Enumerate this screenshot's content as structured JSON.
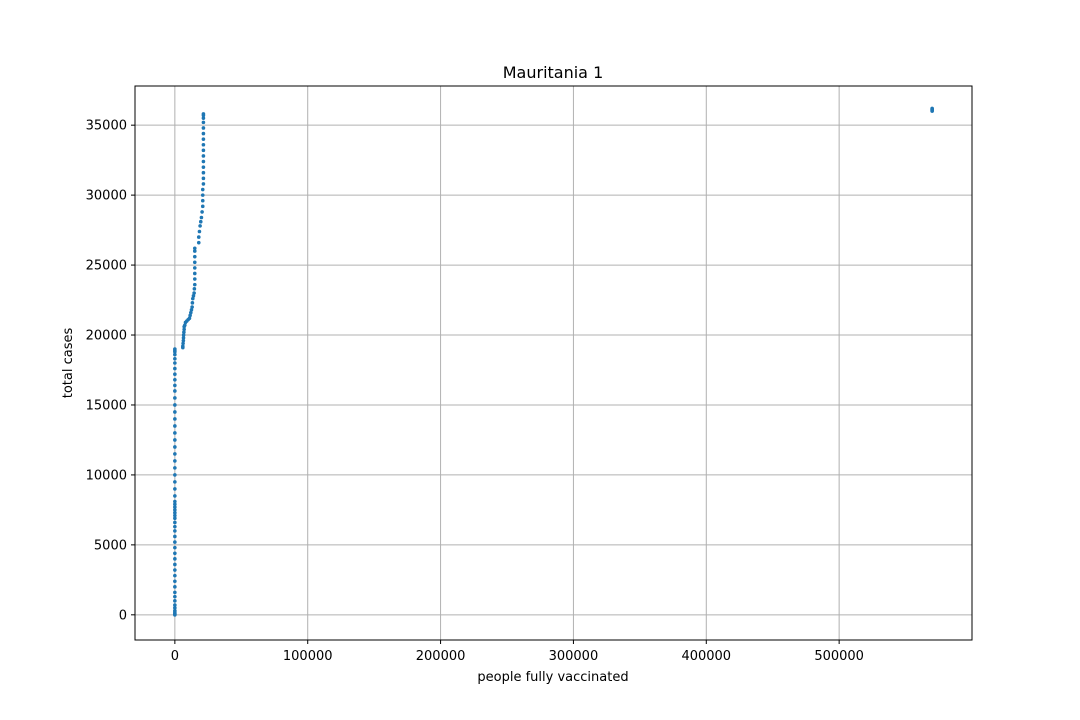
{
  "chart_data": {
    "type": "scatter",
    "title": "Mauritania 1",
    "xlabel": "people fully vaccinated",
    "ylabel": "total cases",
    "xlim": [
      -30000,
      600000
    ],
    "ylim": [
      -1800,
      37800
    ],
    "xticks": [
      0,
      100000,
      200000,
      300000,
      400000,
      500000
    ],
    "xtick_labels": [
      "0",
      "100000",
      "200000",
      "300000",
      "400000",
      "500000"
    ],
    "yticks": [
      0,
      5000,
      10000,
      15000,
      20000,
      25000,
      30000,
      35000
    ],
    "ytick_labels": [
      "0",
      "5000",
      "10000",
      "15000",
      "20000",
      "25000",
      "30000",
      "35000"
    ],
    "grid": true,
    "point_color": "#1f77b4",
    "series": [
      {
        "points": [
          [
            0,
            0
          ],
          [
            0,
            50
          ],
          [
            0,
            100
          ],
          [
            0,
            200
          ],
          [
            0,
            300
          ],
          [
            0,
            500
          ],
          [
            0,
            700
          ],
          [
            0,
            1000
          ],
          [
            0,
            1300
          ],
          [
            0,
            1600
          ],
          [
            0,
            2000
          ],
          [
            0,
            2400
          ],
          [
            0,
            2800
          ],
          [
            0,
            3200
          ],
          [
            0,
            3600
          ],
          [
            0,
            4000
          ],
          [
            0,
            4400
          ],
          [
            0,
            4800
          ],
          [
            0,
            5200
          ],
          [
            0,
            5600
          ],
          [
            0,
            6000
          ],
          [
            0,
            6300
          ],
          [
            0,
            6600
          ],
          [
            0,
            6900
          ],
          [
            0,
            7100
          ],
          [
            0,
            7300
          ],
          [
            0,
            7500
          ],
          [
            0,
            7700
          ],
          [
            0,
            7900
          ],
          [
            0,
            8100
          ],
          [
            0,
            8500
          ],
          [
            0,
            9000
          ],
          [
            0,
            9500
          ],
          [
            0,
            10000
          ],
          [
            0,
            10500
          ],
          [
            0,
            11000
          ],
          [
            0,
            11500
          ],
          [
            0,
            12000
          ],
          [
            0,
            12500
          ],
          [
            0,
            13000
          ],
          [
            0,
            13500
          ],
          [
            0,
            14000
          ],
          [
            0,
            14500
          ],
          [
            0,
            15000
          ],
          [
            0,
            15500
          ],
          [
            0,
            16000
          ],
          [
            0,
            16400
          ],
          [
            0,
            16800
          ],
          [
            0,
            17200
          ],
          [
            0,
            17600
          ],
          [
            0,
            18000
          ],
          [
            0,
            18300
          ],
          [
            0,
            18600
          ],
          [
            0,
            18800
          ],
          [
            0,
            18900
          ],
          [
            0,
            19000
          ],
          [
            6000,
            19100
          ],
          [
            6000,
            19200
          ],
          [
            6200,
            19400
          ],
          [
            6400,
            19600
          ],
          [
            6500,
            19800
          ],
          [
            6600,
            20000
          ],
          [
            6800,
            20200
          ],
          [
            7000,
            20400
          ],
          [
            7000,
            20600
          ],
          [
            7500,
            20700
          ],
          [
            8000,
            20900
          ],
          [
            9000,
            21000
          ],
          [
            10000,
            21100
          ],
          [
            11000,
            21200
          ],
          [
            11500,
            21400
          ],
          [
            12000,
            21600
          ],
          [
            12500,
            21800
          ],
          [
            13000,
            22000
          ],
          [
            13200,
            22300
          ],
          [
            13500,
            22600
          ],
          [
            14000,
            22800
          ],
          [
            14500,
            23000
          ],
          [
            14700,
            23300
          ],
          [
            15000,
            23600
          ],
          [
            15000,
            24000
          ],
          [
            15000,
            24400
          ],
          [
            15000,
            24800
          ],
          [
            15000,
            25200
          ],
          [
            15000,
            25600
          ],
          [
            15000,
            26000
          ],
          [
            15000,
            26200
          ],
          [
            18000,
            26600
          ],
          [
            18000,
            27000
          ],
          [
            18500,
            27400
          ],
          [
            19000,
            27800
          ],
          [
            19500,
            28100
          ],
          [
            20000,
            28400
          ],
          [
            20500,
            28800
          ],
          [
            21000,
            29200
          ],
          [
            21000,
            29600
          ],
          [
            21000,
            30000
          ],
          [
            21000,
            30400
          ],
          [
            21500,
            30800
          ],
          [
            21500,
            31200
          ],
          [
            21500,
            31600
          ],
          [
            21500,
            32000
          ],
          [
            21500,
            32400
          ],
          [
            21500,
            32800
          ],
          [
            21500,
            33200
          ],
          [
            21500,
            33600
          ],
          [
            21500,
            34000
          ],
          [
            21500,
            34400
          ],
          [
            21500,
            34800
          ],
          [
            21500,
            35200
          ],
          [
            21500,
            35500
          ],
          [
            21500,
            35700
          ],
          [
            21500,
            35800
          ],
          [
            570000,
            36000
          ],
          [
            570000,
            36050
          ],
          [
            570000,
            36100
          ],
          [
            570000,
            36150
          ],
          [
            570000,
            36200
          ]
        ]
      }
    ]
  }
}
